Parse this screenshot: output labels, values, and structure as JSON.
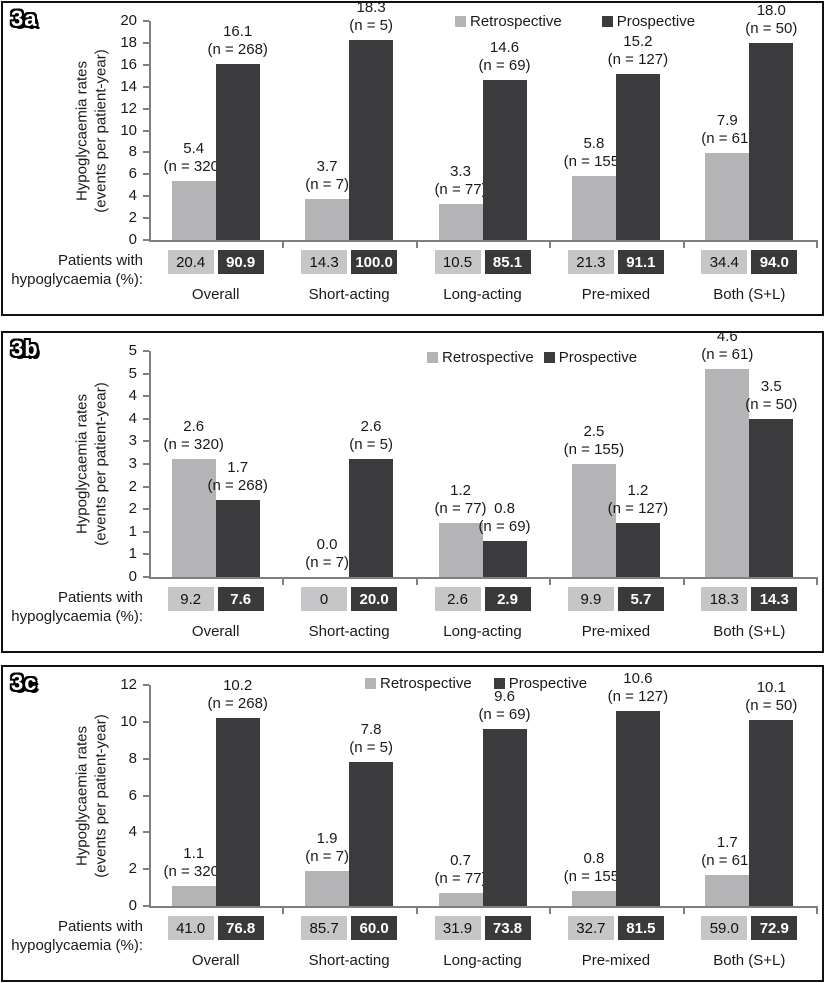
{
  "colors": {
    "retrospective_bar": "#b4b4b6",
    "prospective_bar": "#3b3b3d",
    "retrospective_badge_bg": "#c6c6c8",
    "prospective_badge_bg": "#3a3a3c",
    "axis": "#7f7f7f",
    "text": "#1a1a1a"
  },
  "legend_labels": [
    "Retrospective",
    "Prospective"
  ],
  "ylabel_lines": [
    "Hypoglycaemia rates",
    "(events per patient-year)"
  ],
  "footer_label_lines": [
    "Patients with",
    "hypoglycaemia (%):"
  ],
  "categories": [
    "Overall",
    "Short-acting",
    "Long-acting",
    "Pre-mixed",
    "Both (S+L)"
  ],
  "chart_data": [
    {
      "id": "3a",
      "panel_label": "3a",
      "type": "bar",
      "title": "",
      "xlabel": "",
      "ylabel": "Hypoglycaemia rates (events per patient-year)",
      "grid": false,
      "legend_position": "top-right",
      "categories": [
        "Overall",
        "Short-acting",
        "Long-acting",
        "Pre-mixed",
        "Both (S+L)"
      ],
      "ylim": [
        0,
        20
      ],
      "ytick_labels_top_to_bottom": [
        "20",
        "18",
        "16",
        "14",
        "12",
        "10",
        "8",
        "6",
        "4",
        "2",
        "0"
      ],
      "series": [
        {
          "name": "Retrospective",
          "values": [
            5.4,
            3.7,
            3.3,
            5.8,
            7.9
          ],
          "value_labels": [
            "5.4",
            "3.7",
            "3.3",
            "5.8",
            "7.9"
          ],
          "n_labels": [
            "(n = 320)",
            "(n = 7)",
            "(n = 77)",
            "(n = 155)",
            "(n = 61)"
          ],
          "patients_with_hypoglycaemia_pct": [
            "20.4",
            "14.3",
            "10.5",
            "21.3",
            "34.4"
          ]
        },
        {
          "name": "Prospective",
          "values": [
            16.1,
            18.3,
            14.6,
            15.2,
            18.0
          ],
          "value_labels": [
            "16.1",
            "18.3",
            "14.6",
            "15.2",
            "18.0"
          ],
          "n_labels": [
            "(n = 268)",
            "(n = 5)",
            "(n = 69)",
            "(n = 127)",
            "(n = 50)"
          ],
          "patients_with_hypoglycaemia_pct": [
            "90.9",
            "100.0",
            "85.1",
            "91.1",
            "94.0"
          ]
        }
      ]
    },
    {
      "id": "3b",
      "panel_label": "3b",
      "type": "bar",
      "title": "",
      "xlabel": "",
      "ylabel": "Hypoglycaemia rates (events per patient-year)",
      "grid": false,
      "legend_position": "top-right",
      "categories": [
        "Overall",
        "Short-acting",
        "Long-acting",
        "Pre-mixed",
        "Both (S+L)"
      ],
      "ylim": [
        0,
        5
      ],
      "ytick_labels_top_to_bottom": [
        "5",
        "5",
        "4",
        "4",
        "3",
        "3",
        "2",
        "2",
        "1",
        "1",
        "0"
      ],
      "series": [
        {
          "name": "Retrospective",
          "values": [
            2.6,
            0.0,
            1.2,
            2.5,
            4.6
          ],
          "value_labels": [
            "2.6",
            "0.0",
            "1.2",
            "2.5",
            "4.6"
          ],
          "n_labels": [
            "(n = 320)",
            "(n = 7)",
            "(n = 77)",
            "(n = 155)",
            "(n = 61)"
          ],
          "patients_with_hypoglycaemia_pct": [
            "9.2",
            "0",
            "2.6",
            "9.9",
            "18.3"
          ]
        },
        {
          "name": "Prospective",
          "values": [
            1.7,
            2.6,
            0.8,
            1.2,
            3.5
          ],
          "value_labels": [
            "1.7",
            "2.6",
            "0.8",
            "1.2",
            "3.5"
          ],
          "n_labels": [
            "(n = 268)",
            "(n = 5)",
            "(n = 69)",
            "(n = 127)",
            "(n = 50)"
          ],
          "patients_with_hypoglycaemia_pct": [
            "7.6",
            "20.0",
            "2.9",
            "5.7",
            "14.3"
          ]
        }
      ]
    },
    {
      "id": "3c",
      "panel_label": "3c",
      "type": "bar",
      "title": "",
      "xlabel": "",
      "ylabel": "Hypoglycaemia rates (events per patient-year)",
      "grid": false,
      "legend_position": "top-right",
      "categories": [
        "Overall",
        "Short-acting",
        "Long-acting",
        "Pre-mixed",
        "Both (S+L)"
      ],
      "ylim": [
        0,
        12
      ],
      "ytick_labels_top_to_bottom": [
        "12",
        "10",
        "8",
        "6",
        "4",
        "2",
        "0"
      ],
      "series": [
        {
          "name": "Retrospective",
          "values": [
            1.1,
            1.9,
            0.7,
            0.8,
            1.7
          ],
          "value_labels": [
            "1.1",
            "1.9",
            "0.7",
            "0.8",
            "1.7"
          ],
          "n_labels": [
            "(n = 320)",
            "(n = 7)",
            "(n = 77)",
            "(n = 155)",
            "(n = 61)"
          ],
          "patients_with_hypoglycaemia_pct": [
            "41.0",
            "85.7",
            "31.9",
            "32.7",
            "59.0"
          ]
        },
        {
          "name": "Prospective",
          "values": [
            10.2,
            7.8,
            9.6,
            10.6,
            10.1
          ],
          "value_labels": [
            "10.2",
            "7.8",
            "9.6",
            "10.6",
            "10.1"
          ],
          "n_labels": [
            "(n = 268)",
            "(n = 5)",
            "(n = 69)",
            "(n = 127)",
            "(n = 50)"
          ],
          "patients_with_hypoglycaemia_pct": [
            "76.8",
            "60.0",
            "73.8",
            "81.5",
            "72.9"
          ]
        }
      ]
    }
  ]
}
